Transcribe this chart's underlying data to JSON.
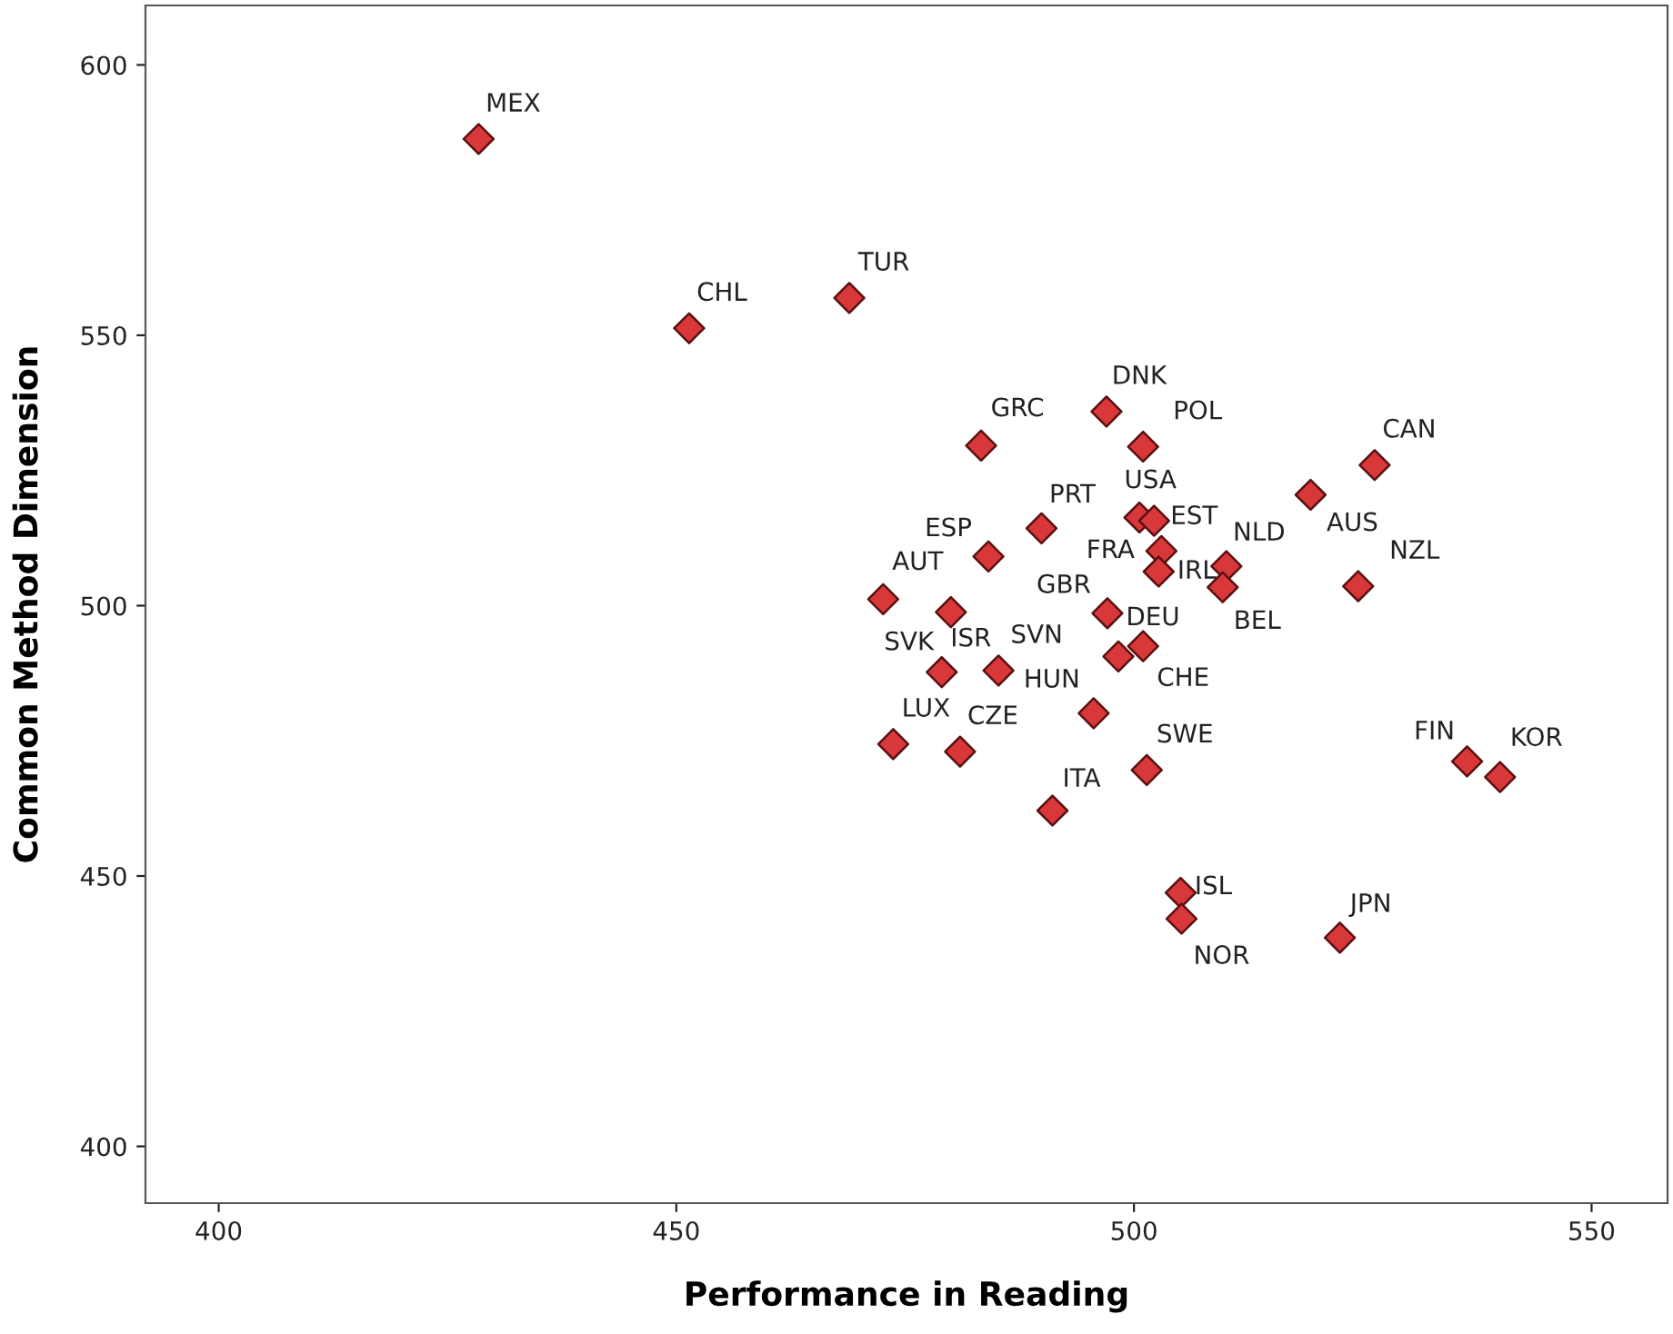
{
  "chart_data": {
    "type": "scatter",
    "xlabel": "Performance in Reading",
    "ylabel": "Common Method Dimension",
    "xlim": [
      392,
      558.3
    ],
    "ylim": [
      389.5,
      611
    ],
    "xticks": [
      400,
      450,
      500,
      550
    ],
    "yticks": [
      400,
      450,
      500,
      550,
      600
    ],
    "grid": false,
    "legend": false,
    "marker": "diamond",
    "series": [
      {
        "color": "#d9383a",
        "x": [
          428.4,
          451.4,
          468.9,
          483.3,
          497.0,
          501.0,
          526.3,
          519.3,
          500.6,
          502.2,
          489.9,
          484.1,
          503.0,
          502.7,
          510.1,
          509.7,
          524.5,
          472.6,
          497.1,
          480.0,
          479.0,
          485.2,
          498.3,
          501.0,
          495.6,
          473.7,
          481.0,
          501.4,
          491.1,
          536.4,
          540.0,
          505.1,
          505.2,
          522.5
        ],
        "values": [
          586.3,
          551.3,
          556.9,
          529.6,
          535.9,
          529.4,
          526.0,
          520.5,
          516.3,
          515.7,
          514.3,
          509.1,
          510.1,
          506.3,
          507.3,
          503.4,
          503.6,
          501.2,
          498.6,
          498.8,
          487.7,
          488.0,
          490.6,
          492.5,
          480.1,
          474.4,
          473.0,
          469.6,
          462.1,
          471.2,
          468.3,
          446.9,
          442.1,
          438.6
        ]
      }
    ],
    "annotations": [
      {
        "text": "MEX",
        "x": 428.4,
        "y": 586.3
      },
      {
        "text": "CHL",
        "x": 451.4,
        "y": 551.3
      },
      {
        "text": "TUR",
        "x": 468.9,
        "y": 556.9
      },
      {
        "text": "GRC",
        "x": 483.3,
        "y": 529.6
      },
      {
        "text": "DNK",
        "x": 497.0,
        "y": 535.9
      },
      {
        "text": "POL",
        "x": 501.0,
        "y": 529.4
      },
      {
        "text": "CAN",
        "x": 526.3,
        "y": 526.0
      },
      {
        "text": "AUS",
        "x": 519.3,
        "y": 520.5
      },
      {
        "text": "USA",
        "x": 500.6,
        "y": 516.3
      },
      {
        "text": "EST",
        "x": 502.2,
        "y": 515.7
      },
      {
        "text": "PRT",
        "x": 489.9,
        "y": 514.3
      },
      {
        "text": "ESP",
        "x": 484.1,
        "y": 509.1
      },
      {
        "text": "FRA",
        "x": 503.0,
        "y": 510.1
      },
      {
        "text": "IRL",
        "x": 502.7,
        "y": 506.3
      },
      {
        "text": "NLD",
        "x": 510.1,
        "y": 507.3
      },
      {
        "text": "BEL",
        "x": 509.7,
        "y": 503.4
      },
      {
        "text": "NZL",
        "x": 524.5,
        "y": 503.6
      },
      {
        "text": "AUT",
        "x": 472.6,
        "y": 501.2
      },
      {
        "text": "GBR",
        "x": 497.1,
        "y": 498.6
      },
      {
        "text": "ISR",
        "x": 480.0,
        "y": 498.8
      },
      {
        "text": "SVK",
        "x": 479.0,
        "y": 487.7
      },
      {
        "text": "SVN",
        "x": 485.2,
        "y": 488.0
      },
      {
        "text": "DEU",
        "x": 498.3,
        "y": 490.6
      },
      {
        "text": "CHE",
        "x": 501.0,
        "y": 492.5
      },
      {
        "text": "HUN",
        "x": 495.6,
        "y": 480.1
      },
      {
        "text": "LUX",
        "x": 473.7,
        "y": 474.4
      },
      {
        "text": "CZE",
        "x": 481.0,
        "y": 473.0
      },
      {
        "text": "SWE",
        "x": 501.4,
        "y": 469.6
      },
      {
        "text": "ITA",
        "x": 491.1,
        "y": 462.1
      },
      {
        "text": "FIN",
        "x": 536.4,
        "y": 471.2
      },
      {
        "text": "KOR",
        "x": 540.0,
        "y": 468.3
      },
      {
        "text": "ISL",
        "x": 505.1,
        "y": 446.9
      },
      {
        "text": "NOR",
        "x": 505.2,
        "y": 442.1
      },
      {
        "text": "JPN",
        "x": 522.5,
        "y": 438.6
      }
    ]
  }
}
